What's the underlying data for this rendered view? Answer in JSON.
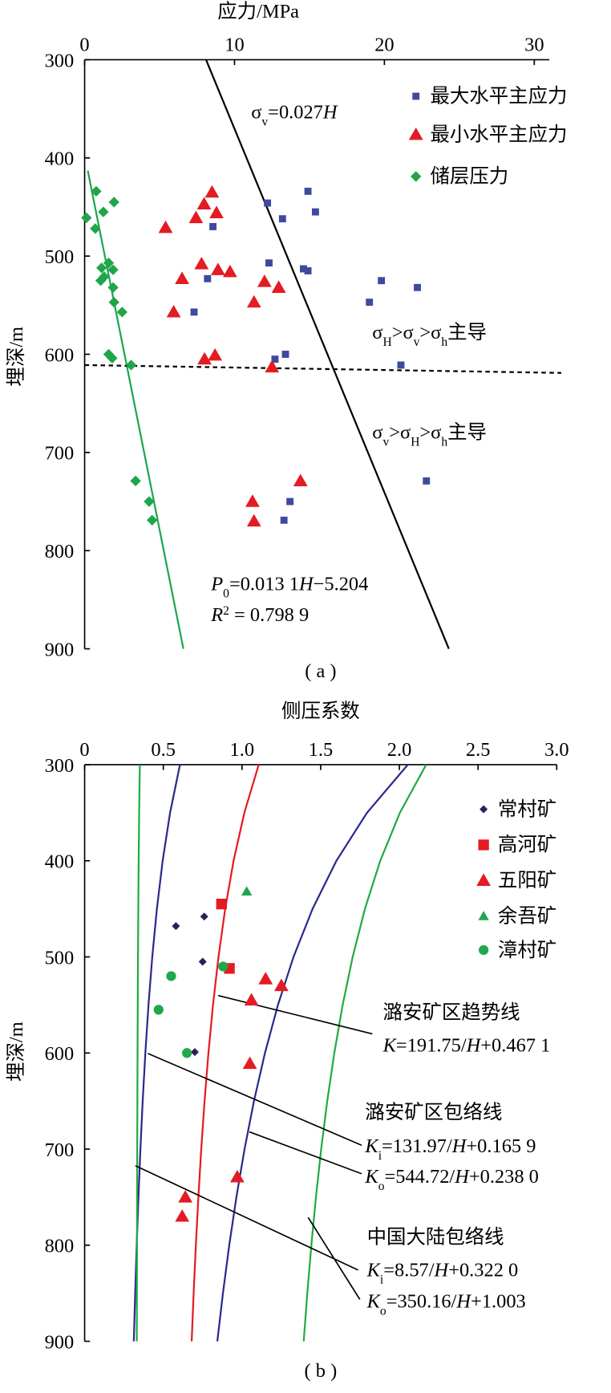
{
  "chart_data": [
    {
      "type": "scatter",
      "x_label": "应力/MPa",
      "y_label": "埋深/m",
      "caption": "( a )",
      "xlim": [
        0,
        31
      ],
      "ylim": [
        300,
        900
      ],
      "y_inverted": true,
      "x_axis": "top",
      "xticks": [
        0,
        10,
        20,
        30
      ],
      "yticks": [
        300,
        400,
        500,
        600,
        700,
        800,
        900
      ],
      "grid": false,
      "legend": "upper right",
      "series": [
        {
          "name": "最大水平主应力",
          "color": "#3d4b9c",
          "marker": "square",
          "x": [
            8.56,
            8.2,
            7.3,
            12.2,
            14.9,
            13.2,
            15.4,
            12.3,
            14.6,
            14.9,
            19.8,
            22.2,
            19.0,
            13.4,
            12.7,
            21.1,
            22.8,
            13.7,
            13.3
          ],
          "values": [
            470,
            523,
            557,
            446,
            434,
            462,
            455,
            507,
            513,
            515,
            525,
            532,
            547,
            600,
            605,
            611,
            729,
            750,
            769
          ]
        },
        {
          "name": "最小水平主应力",
          "color": "#e31b23",
          "marker": "triangle",
          "x": [
            8.5,
            7.97,
            8.8,
            7.43,
            5.4,
            7.8,
            8.9,
            9.7,
            6.5,
            12.0,
            12.95,
            11.3,
            5.94,
            8.7,
            8.0,
            12.5,
            14.4,
            11.2,
            11.3
          ],
          "values": [
            435,
            447,
            456,
            461,
            471,
            508,
            514,
            516,
            523,
            526,
            532,
            547,
            557,
            601,
            605,
            613,
            729,
            750,
            770
          ]
        },
        {
          "name": "储层压力",
          "color": "#1fa64a",
          "marker": "diamond",
          "x": [
            0.77,
            0.12,
            1.25,
            1.96,
            0.71,
            1.6,
            1.13,
            1.9,
            1.3,
            1.07,
            1.9,
            1.96,
            2.5,
            1.6,
            1.84,
            3.1,
            3.4,
            4.3,
            4.5
          ],
          "values": [
            434,
            461,
            455,
            445,
            472,
            507,
            512,
            514,
            521,
            525,
            532,
            547,
            557,
            600,
            604,
            611,
            729,
            750,
            769
          ]
        }
      ],
      "lines": [
        {
          "color": "#000000",
          "dash": false,
          "x": [
            8.1,
            24.3
          ],
          "values": [
            300,
            900
          ]
        },
        {
          "color": "#1fa64a",
          "dash": false,
          "x": [
            0.21,
            6.59
          ],
          "values": [
            413,
            900
          ]
        },
        {
          "color": "#000000",
          "dash": true,
          "x": [
            0,
            31.8
          ],
          "values": [
            611,
            619
          ]
        }
      ],
      "annotations": [
        [
          "σ",
          "v",
          "=0.027",
          "H"
        ],
        [
          "σ",
          "H",
          ">σ",
          "v",
          ">σ",
          "h",
          "主导"
        ],
        [
          "σ",
          "v",
          ">σ",
          "H",
          ">σ",
          "h",
          "主导"
        ],
        [
          "P",
          "0",
          "=0.013 1",
          "H",
          "−5.204"
        ],
        [
          "R",
          "2",
          " = 0.798 9"
        ]
      ]
    },
    {
      "type": "scatter",
      "x_label": "侧压系数",
      "y_label": "埋深/m",
      "caption": "( b )",
      "xlim": [
        0,
        3.0
      ],
      "ylim": [
        300,
        900
      ],
      "y_inverted": true,
      "x_axis": "top",
      "xticks": [
        0,
        0.5,
        {
          "value": 1,
          "label": "1.0"
        },
        1.5,
        {
          "value": 2,
          "label": "2.0"
        },
        2.5,
        {
          "value": 3,
          "label": "3.0"
        }
      ],
      "yticks": [
        300,
        400,
        500,
        600,
        700,
        800,
        900
      ],
      "grid": false,
      "legend": "upper right",
      "series": [
        {
          "name": "常村矿",
          "color": "#2b1e5a",
          "marker": "diamond-small",
          "x": [
            0.58,
            0.76,
            0.75,
            0.7
          ],
          "values": [
            468,
            458,
            505,
            599
          ]
        },
        {
          "name": "高河矿",
          "color": "#e31b23",
          "marker": "square-big",
          "x": [
            0.87,
            0.92
          ],
          "values": [
            445,
            512
          ]
        },
        {
          "name": "五阳矿",
          "color": "#e31b23",
          "marker": "triangle",
          "x": [
            1.15,
            1.25,
            1.06,
            1.05,
            0.97,
            0.64,
            0.62
          ],
          "values": [
            523,
            530,
            545,
            611,
            729,
            750,
            770
          ]
        },
        {
          "name": "余吾矿",
          "color": "#1fa64a",
          "marker": "triangle-small",
          "x": [
            1.03
          ],
          "values": [
            432
          ]
        },
        {
          "name": "漳村矿",
          "color": "#20a84a",
          "marker": "circle",
          "x": [
            0.55,
            0.47,
            0.65,
            0.88
          ],
          "values": [
            520,
            555,
            600,
            510
          ]
        }
      ],
      "lines": [
        {
          "color": "#e31b23",
          "dash": false,
          "x": [
            1.1063,
            1.015,
            0.9465,
            0.8932,
            0.8506,
            0.8157,
            0.7867,
            0.7621,
            0.741,
            0.7228,
            0.7068,
            0.6927,
            0.6802
          ],
          "values": [
            300,
            350,
            400,
            450,
            500,
            550,
            600,
            650,
            700,
            750,
            800,
            850,
            900
          ]
        },
        {
          "color": "#2a2a8c",
          "dash": false,
          "x": [
            0.6058,
            0.543,
            0.4958,
            0.4592,
            0.4298,
            0.4058,
            0.3858,
            0.3689,
            0.3544,
            0.3419,
            0.3309,
            0.3212,
            0.3125
          ],
          "values": [
            300,
            350,
            400,
            450,
            500,
            550,
            600,
            650,
            700,
            750,
            800,
            850,
            900
          ]
        },
        {
          "color": "#2a2a8c",
          "dash": false,
          "x": [
            2.0537,
            1.7943,
            1.5998,
            1.4485,
            1.3274,
            1.2284,
            1.1459,
            1.076,
            1.0162,
            0.9643,
            0.9189,
            0.8789,
            0.8432
          ],
          "values": [
            300,
            350,
            400,
            450,
            500,
            550,
            600,
            650,
            700,
            750,
            800,
            850,
            900
          ]
        },
        {
          "color": "#22aa44",
          "dash": false,
          "x": [
            0.3506,
            0.3465,
            0.3434,
            0.341,
            0.3391,
            0.3376,
            0.3363,
            0.3352,
            0.3342,
            0.3334,
            0.3327,
            0.3321,
            0.3315
          ],
          "values": [
            300,
            350,
            400,
            450,
            500,
            550,
            600,
            650,
            700,
            750,
            800,
            850,
            900
          ]
        },
        {
          "color": "#22aa44",
          "dash": false,
          "x": [
            2.1702,
            2.0035,
            1.8784,
            1.7811,
            1.7033,
            1.6397,
            1.5866,
            1.5417,
            1.5032,
            1.4699,
            1.4407,
            1.415,
            1.3921
          ],
          "values": [
            300,
            350,
            400,
            450,
            500,
            550,
            600,
            650,
            700,
            750,
            800,
            850,
            900
          ]
        }
      ],
      "annotations": [
        [
          "潞安矿区趋势线"
        ],
        [
          "K",
          "=191.75/",
          "H",
          "+0.467 1"
        ],
        [
          "潞安矿区包络线"
        ],
        [
          "K",
          "i",
          "=131.97/",
          "H",
          "+0.165 9"
        ],
        [
          "K",
          "o",
          "=544.72/",
          "H",
          "+0.238 0"
        ],
        [
          "中国大陆包络线"
        ],
        [
          "K",
          "i",
          "=8.57/",
          "H",
          "+0.322 0"
        ],
        [
          "K",
          "o",
          "=350.16/",
          "H",
          "+1.003"
        ]
      ]
    }
  ]
}
